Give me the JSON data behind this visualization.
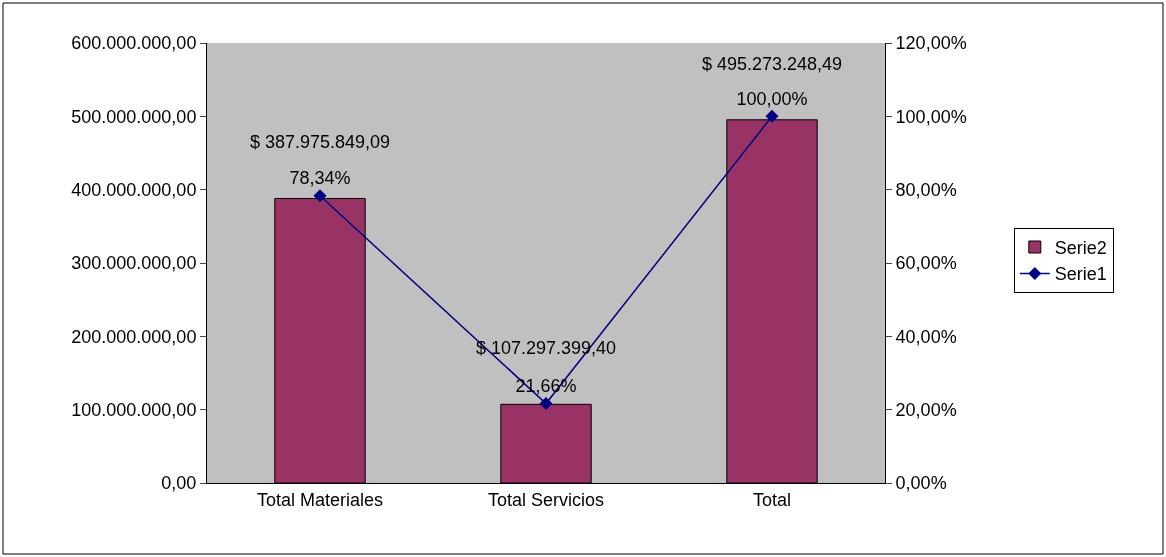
{
  "chart_data": {
    "type": "bar",
    "categories": [
      "Total Materiales",
      "Total Servicios",
      "Total"
    ],
    "series": [
      {
        "name": "Serie2",
        "color": "#993366",
        "values": [
          387975849.09,
          107297399.4,
          495273248.49
        ],
        "value_labels": [
          "$ 387.975.849,09",
          "$ 107.297.399,40",
          "$ 495.273.248,49"
        ]
      },
      {
        "name": "Serie1",
        "type": "line",
        "axis": "y2",
        "color": "#000080",
        "values": [
          78.34,
          21.66,
          100
        ],
        "value_labels": [
          "78,34%",
          "21,66%",
          "100,00%"
        ],
        "marker": "diamond"
      }
    ],
    "ylim": [
      0,
      600000000
    ],
    "yticks": [
      {
        "value": 0,
        "label": "0,00"
      },
      {
        "value": 100000000,
        "label": "100.000.000,00"
      },
      {
        "value": 200000000,
        "label": "200.000.000,00"
      },
      {
        "value": 300000000,
        "label": "300.000.000,00"
      },
      {
        "value": 400000000,
        "label": "400.000.000,00"
      },
      {
        "value": 500000000,
        "label": "500.000.000,00"
      },
      {
        "value": 600000000,
        "label": "600.000.000,00"
      }
    ],
    "y2lim": [
      0,
      120
    ],
    "y2ticks": [
      {
        "value": 0,
        "label": "0,00%"
      },
      {
        "value": 20,
        "label": "20,00%"
      },
      {
        "value": 40,
        "label": "40,00%"
      },
      {
        "value": 60,
        "label": "60,00%"
      },
      {
        "value": 80,
        "label": "80,00%"
      },
      {
        "value": 100,
        "label": "100,00%"
      },
      {
        "value": 120,
        "label": "120,00%"
      }
    ],
    "legend": "right",
    "grid": false
  }
}
